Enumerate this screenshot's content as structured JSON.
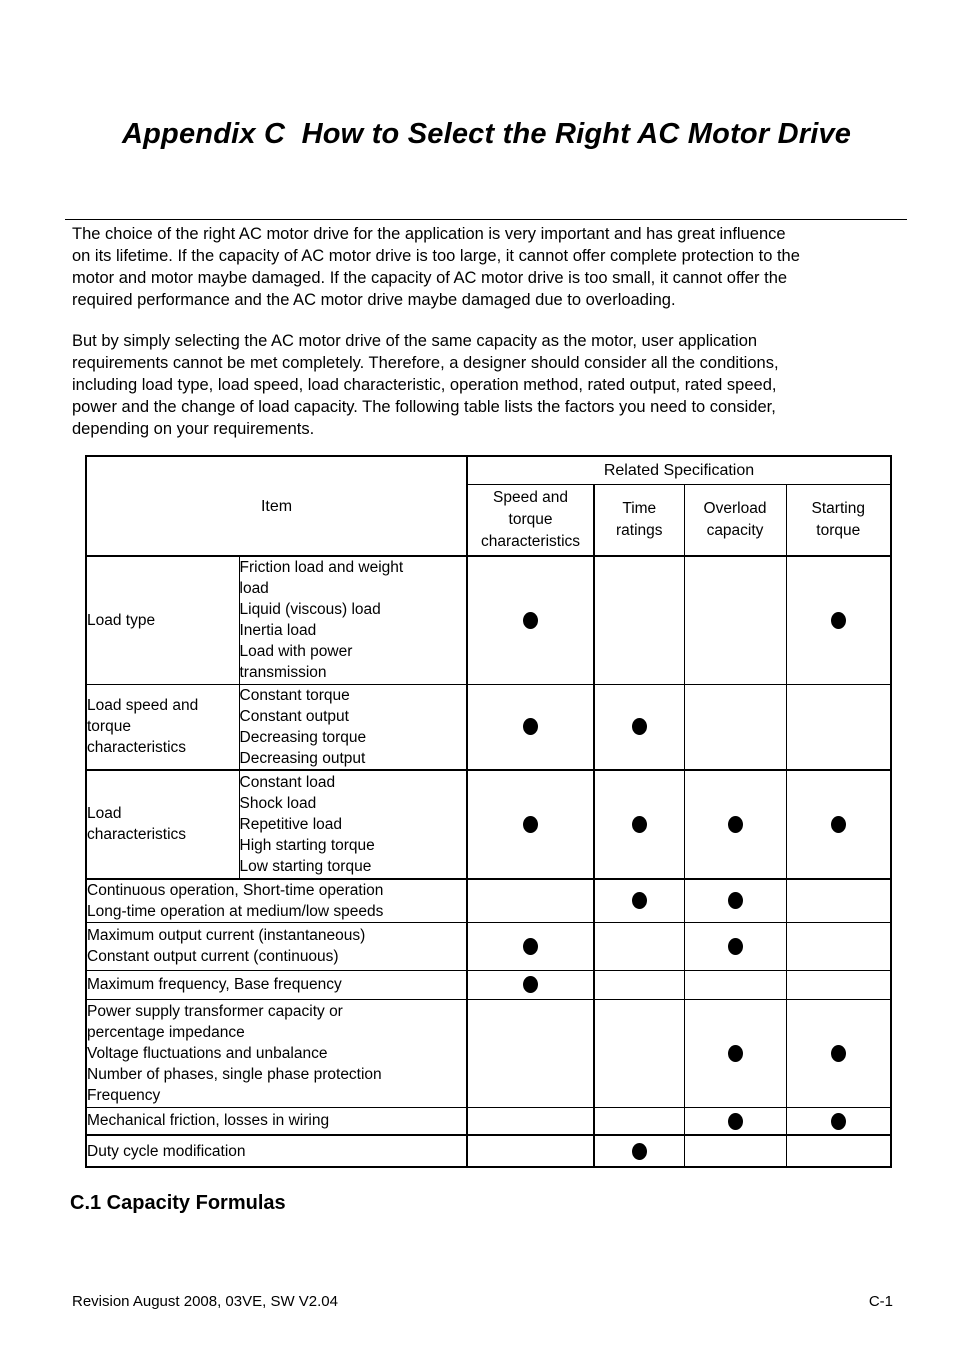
{
  "document": {
    "title": "Appendix C  How to Select the Right AC Motor Drive",
    "intro_paragraphs": [
      "The choice of the right AC motor drive for the application is very important and has great influence\non its lifetime. If the capacity of AC motor drive is too large, it cannot offer complete protection to the\nmotor and motor maybe damaged. If the capacity of AC motor drive is too small, it cannot offer the\nrequired performance and the AC motor drive maybe damaged due to overloading.",
      "But by simply selecting the AC motor drive of the same capacity as the motor, user application\nrequirements cannot be met completely. Therefore, a designer should consider all the conditions,\nincluding load type, load speed, load characteristic, operation method, rated output, rated speed,\npower and the change of load capacity. The following table lists the factors you need to consider,\ndepending on your requirements."
    ],
    "section_heading": "C.1 Capacity Formulas",
    "footer": {
      "left": "Revision August 2008, 03VE, SW V2.04",
      "right": "C-1"
    }
  },
  "table": {
    "header": {
      "item": "Item",
      "related_specification": "Related Specification",
      "columns": [
        "Speed and\ntorque\ncharacteristics",
        "Time\nratings",
        "Overload\ncapacity",
        "Starting\ntorque"
      ]
    },
    "rows": [
      {
        "category": "Load type",
        "details": "Friction load and weight\nload\nLiquid (viscous) load\nInertia load\nLoad with power\ntransmission",
        "marks": [
          1,
          0,
          0,
          1
        ]
      },
      {
        "category": "Load speed and\ntorque\ncharacteristics",
        "details": "Constant torque\nConstant output\nDecreasing torque\nDecreasing output",
        "marks": [
          1,
          1,
          0,
          0
        ]
      },
      {
        "category": "Load\ncharacteristics",
        "details": "Constant load\nShock load\nRepetitive load\nHigh starting torque\nLow starting torque",
        "marks": [
          1,
          1,
          1,
          1
        ]
      },
      {
        "item": "Continuous operation, Short-time operation\nLong-time operation at medium/low speeds",
        "marks": [
          0,
          1,
          1,
          0
        ]
      },
      {
        "item": "Maximum output current (instantaneous)\nConstant output current (continuous)",
        "marks": [
          1,
          0,
          1,
          0
        ]
      },
      {
        "item": "Maximum frequency, Base frequency",
        "marks": [
          1,
          0,
          0,
          0
        ]
      },
      {
        "item": "Power supply transformer capacity or\npercentage impedance\nVoltage fluctuations and unbalance\nNumber of phases, single phase protection\nFrequency",
        "marks": [
          0,
          0,
          1,
          1
        ]
      },
      {
        "item": "Mechanical friction, losses in wiring",
        "marks": [
          0,
          0,
          1,
          1
        ]
      },
      {
        "item": "Duty cycle modification",
        "marks": [
          0,
          1,
          0,
          0
        ]
      }
    ]
  }
}
